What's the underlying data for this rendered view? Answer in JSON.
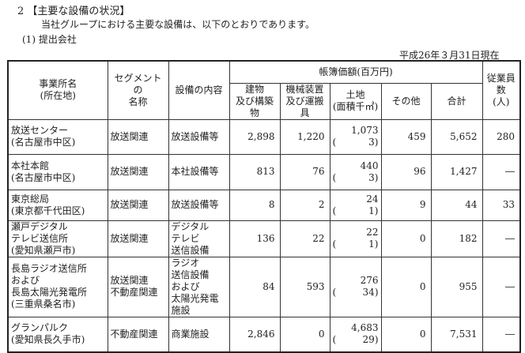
{
  "section_title": "2 【主要な設備の状況】",
  "intro": "当社グループにおける主要な設備は、以下のとおりであります。",
  "subsection": "(1) 提出会社",
  "as_of": "平成26年３月31日現在",
  "headers": {
    "office": "事業所名",
    "office_sub": "(所在地)",
    "segment": "セグメントの",
    "segment_sub": "名称",
    "equipment": "設備の内容",
    "book_value": "帳簿価額(百万円)",
    "buildings": "建物",
    "buildings_sub": "及び構築物",
    "machinery": "機械装置",
    "machinery_sub": "及び運搬具",
    "land": "土地",
    "land_sub": "(面積千㎡)",
    "other": "その他",
    "total": "合計",
    "employees": "従業員数",
    "employees_sub": "(人)"
  },
  "rows": [
    {
      "office": [
        "放送センター",
        "(名古屋市中区)"
      ],
      "segment": [
        "放送関連"
      ],
      "equipment": [
        "放送設備等"
      ],
      "buildings": "2,898",
      "machinery": "1,220",
      "land": "1,073",
      "area": "3)",
      "other": "459",
      "total": "5,652",
      "employees": "280"
    },
    {
      "office": [
        "本社本館",
        "(名古屋市中区)"
      ],
      "segment": [
        "放送関連"
      ],
      "equipment": [
        "本社設備等"
      ],
      "buildings": "813",
      "machinery": "76",
      "land": "440",
      "area": "3)",
      "other": "96",
      "total": "1,427",
      "employees": "―"
    },
    {
      "office": [
        "東京総局",
        "(東京都千代田区)"
      ],
      "segment": [
        "放送関連"
      ],
      "equipment": [
        "放送設備等"
      ],
      "buildings": "8",
      "machinery": "2",
      "land": "24",
      "area": "1)",
      "other": "9",
      "total": "44",
      "employees": "33"
    },
    {
      "office": [
        "瀬戸デジタル",
        "テレビ送信所",
        "(愛知県瀬戸市)"
      ],
      "segment": [
        "放送関連"
      ],
      "equipment": [
        "デジタル",
        "テレビ",
        "送信設備"
      ],
      "buildings": "136",
      "machinery": "22",
      "land": "22",
      "area": "1)",
      "other": "0",
      "total": "182",
      "employees": "―"
    },
    {
      "office": [
        "長島ラジオ送信所",
        "および",
        "長島太陽光発電所",
        "(三重県桑名市)"
      ],
      "segment": [
        "放送関連",
        "不動産関連"
      ],
      "equipment": [
        "ラジオ",
        "送信設備",
        "および",
        "太陽光発電",
        "施設"
      ],
      "buildings": "84",
      "machinery": "593",
      "land": "276",
      "area": "34)",
      "other": "0",
      "total": "955",
      "employees": "―"
    },
    {
      "office": [
        "グランパルク",
        "(愛知県長久手市)"
      ],
      "segment": [
        "不動産関連"
      ],
      "equipment": [
        "商業施設"
      ],
      "buildings": "2,846",
      "machinery": "0",
      "land": "4,683",
      "area": "29)",
      "other": "0",
      "total": "7,531",
      "employees": "―"
    }
  ],
  "paren_open": "("
}
